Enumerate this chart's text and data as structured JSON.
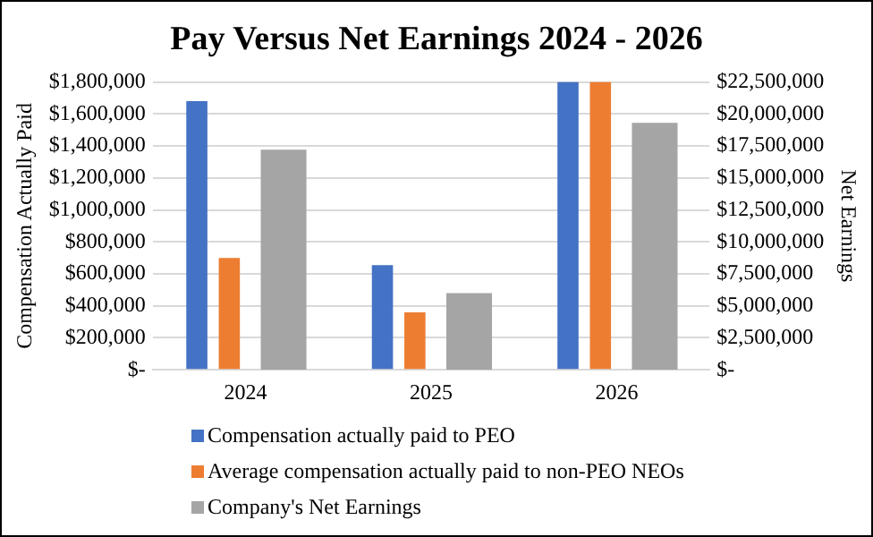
{
  "chart_data": {
    "type": "bar",
    "title": "Pay Versus Net Earnings 2024 - 2026",
    "ylabel": "Compensation Actually Paid",
    "y2label": "Net Earnings",
    "categories": [
      "2024",
      "2025",
      "2026"
    ],
    "series": [
      {
        "name": "Compensation actually paid to PEO",
        "color": "#4472c4",
        "values": [
          1680000,
          655000,
          1800000
        ]
      },
      {
        "name": "Average compensation actually paid to non-PEO NEOs",
        "color": "#ed7d31",
        "values": [
          700000,
          360000,
          1800000
        ]
      },
      {
        "name": "Company's Net Earnings",
        "color": "#a5a5a5",
        "axis": "y2",
        "values": [
          17200000,
          6000000,
          19300000
        ]
      }
    ],
    "ylim": [
      0,
      1800000
    ],
    "yticks": [
      {
        "value": 0,
        "label": "$-"
      },
      {
        "value": 200000,
        "label": "$200,000"
      },
      {
        "value": 400000,
        "label": "$400,000"
      },
      {
        "value": 600000,
        "label": "$600,000"
      },
      {
        "value": 800000,
        "label": "$800,000"
      },
      {
        "value": 1000000,
        "label": "$1,000,000"
      },
      {
        "value": 1200000,
        "label": "$1,200,000"
      },
      {
        "value": 1400000,
        "label": "$1,400,000"
      },
      {
        "value": 1600000,
        "label": "$1,600,000"
      },
      {
        "value": 1800000,
        "label": "$1,800,000"
      }
    ],
    "y2lim": [
      0,
      22500000
    ],
    "y2ticks": [
      {
        "value": 0,
        "label": "$-"
      },
      {
        "value": 2500000,
        "label": "$2,500,000"
      },
      {
        "value": 5000000,
        "label": "$5,000,000"
      },
      {
        "value": 7500000,
        "label": "$7,500,000"
      },
      {
        "value": 10000000,
        "label": "$10,000,000"
      },
      {
        "value": 12500000,
        "label": "$12,500,000"
      },
      {
        "value": 15000000,
        "label": "$15,000,000"
      },
      {
        "value": 17500000,
        "label": "$17,500,000"
      },
      {
        "value": 20000000,
        "label": "$20,000,000"
      },
      {
        "value": 22500000,
        "label": "$22,500,000"
      }
    ],
    "grid": "y",
    "legend": "bottom"
  }
}
